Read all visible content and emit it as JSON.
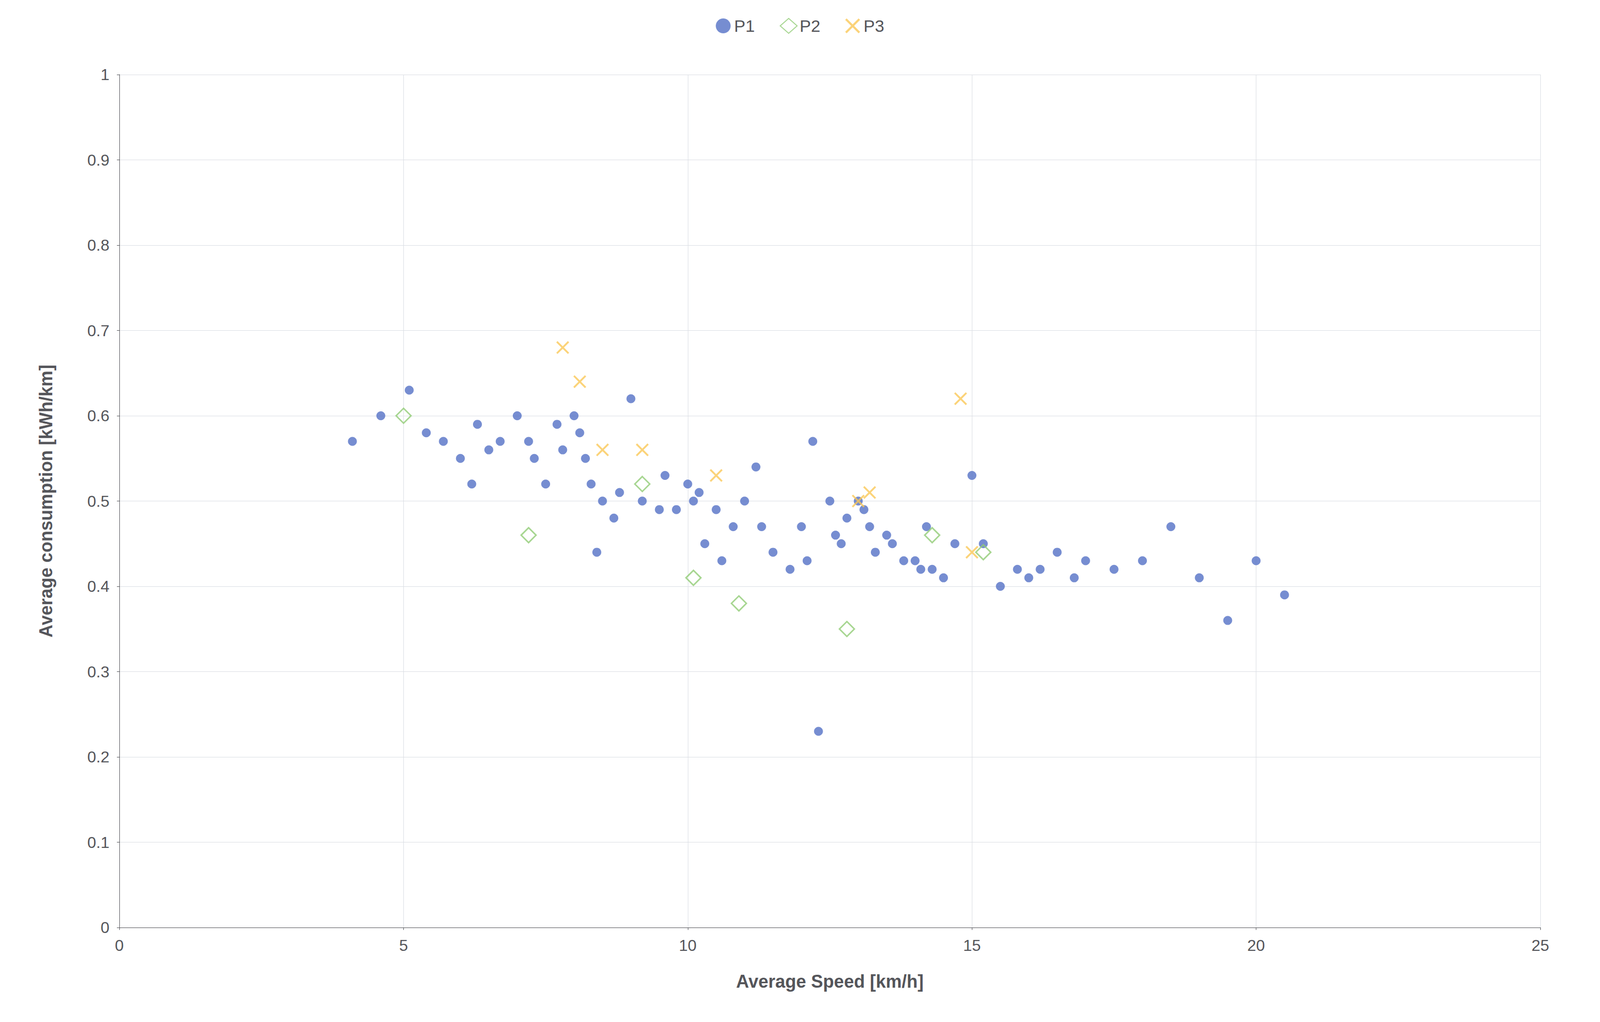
{
  "chart_data": {
    "type": "scatter",
    "xlabel": "Average Speed [km/h]",
    "ylabel": "Average consumption [kWh/km]",
    "xlim": [
      0,
      25
    ],
    "ylim": [
      0,
      1
    ],
    "xticks": [
      0,
      5,
      10,
      15,
      20,
      25
    ],
    "yticks": [
      0,
      0.1,
      0.2,
      0.3,
      0.4,
      0.5,
      0.6,
      0.7,
      0.8,
      0.9,
      1
    ],
    "grid": true,
    "legend": "top",
    "series": [
      {
        "name": "P1",
        "marker": "circle",
        "x": [
          4.1,
          4.6,
          5.1,
          5.4,
          5.7,
          6.0,
          6.2,
          6.3,
          6.5,
          6.7,
          7.0,
          7.2,
          7.3,
          7.5,
          7.7,
          7.8,
          8.0,
          8.1,
          8.2,
          8.3,
          8.4,
          8.5,
          8.7,
          8.8,
          9.0,
          9.2,
          9.5,
          9.6,
          9.8,
          10.0,
          10.1,
          10.2,
          10.3,
          10.5,
          10.6,
          10.8,
          11.0,
          11.2,
          11.3,
          11.5,
          11.8,
          12.0,
          12.1,
          12.2,
          12.3,
          12.5,
          12.6,
          12.7,
          12.8,
          13.0,
          13.1,
          13.2,
          13.3,
          13.5,
          13.6,
          13.8,
          14.0,
          14.1,
          14.2,
          14.3,
          14.5,
          14.7,
          15.0,
          15.2,
          15.5,
          15.8,
          16.0,
          16.2,
          16.5,
          16.8,
          17.0,
          17.5,
          18.0,
          18.5,
          19.0,
          19.5,
          20.0,
          20.5
        ],
        "values": [
          0.57,
          0.6,
          0.63,
          0.58,
          0.57,
          0.55,
          0.52,
          0.59,
          0.56,
          0.57,
          0.6,
          0.57,
          0.55,
          0.52,
          0.59,
          0.56,
          0.6,
          0.58,
          0.55,
          0.52,
          0.44,
          0.5,
          0.48,
          0.51,
          0.62,
          0.5,
          0.49,
          0.53,
          0.49,
          0.52,
          0.5,
          0.51,
          0.45,
          0.49,
          0.43,
          0.47,
          0.5,
          0.54,
          0.47,
          0.44,
          0.42,
          0.47,
          0.43,
          0.57,
          0.23,
          0.5,
          0.46,
          0.45,
          0.48,
          0.5,
          0.49,
          0.47,
          0.44,
          0.46,
          0.45,
          0.43,
          0.43,
          0.42,
          0.47,
          0.42,
          0.41,
          0.45,
          0.53,
          0.45,
          0.4,
          0.42,
          0.41,
          0.42,
          0.44,
          0.41,
          0.43,
          0.42,
          0.43,
          0.47,
          0.41,
          0.36,
          0.43,
          0.39
        ]
      },
      {
        "name": "P2",
        "marker": "open_diamond",
        "x": [
          5.0,
          7.2,
          9.2,
          10.1,
          10.9,
          12.8,
          14.3,
          15.2
        ],
        "values": [
          0.6,
          0.46,
          0.52,
          0.41,
          0.38,
          0.35,
          0.46,
          0.44
        ]
      },
      {
        "name": "P3",
        "marker": "x",
        "x": [
          7.8,
          8.1,
          8.5,
          9.2,
          10.5,
          13.0,
          13.2,
          14.8,
          15.0
        ],
        "values": [
          0.68,
          0.64,
          0.56,
          0.56,
          0.53,
          0.5,
          0.51,
          0.62,
          0.44
        ]
      }
    ]
  }
}
